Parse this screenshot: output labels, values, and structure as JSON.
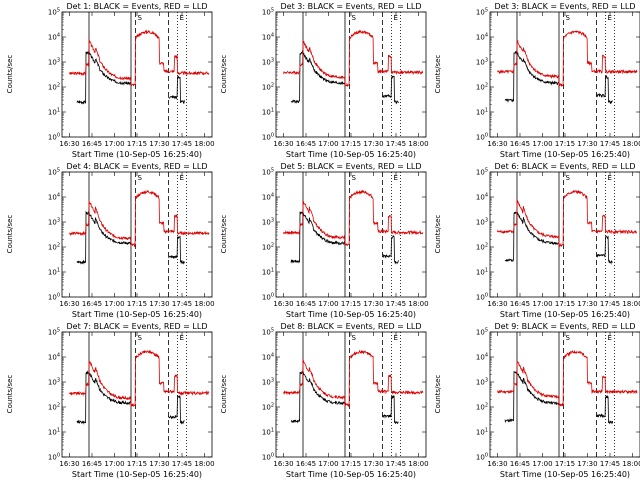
{
  "x_tick_labels": [
    "16:30",
    "16:45",
    "17:00",
    "17:15",
    "17:30",
    "17:45",
    "18:00"
  ],
  "y_tick_labels": [
    "10^0",
    "10^1",
    "10^2",
    "10^3",
    "10^4",
    "10^5"
  ],
  "chart_data": [
    {
      "type": "line",
      "title": "Det 1: BLACK = Events, RED = LLD",
      "xlabel": "Start Time (10-Sep-05 16:25:40)",
      "ylabel": "Counts/sec",
      "ylim": [
        1,
        100000
      ],
      "series": [
        {
          "name": "BLACK = Events",
          "color": "#000000"
        },
        {
          "name": "RED = LLD",
          "color": "#dd0000"
        }
      ],
      "legend": "none",
      "grid": false
    },
    {
      "type": "line",
      "title": "Det 3: BLACK = Events, RED = LLD",
      "xlabel": "Start Time (10-Sep-05 16:25:40)",
      "ylabel": "Counts/sec",
      "ylim": [
        1,
        100000
      ],
      "series": [
        {
          "name": "BLACK = Events",
          "color": "#000000"
        },
        {
          "name": "RED = LLD",
          "color": "#dd0000"
        }
      ],
      "legend": "none",
      "grid": false
    },
    {
      "type": "line",
      "title": "Det 3: BLACK = Events, RED = LLD",
      "xlabel": "Start Time (10-Sep-05 16:25:40)",
      "ylabel": "Counts/sec",
      "ylim": [
        1,
        100000
      ],
      "series": [
        {
          "name": "BLACK = Events",
          "color": "#000000"
        },
        {
          "name": "RED = LLD",
          "color": "#dd0000"
        }
      ],
      "legend": "none",
      "grid": false
    },
    {
      "type": "line",
      "title": "Det 4: BLACK = Events, RED = LLD",
      "xlabel": "Start Time (10-Sep-05 16:25:40)",
      "ylabel": "Counts/sec",
      "ylim": [
        1,
        100000
      ],
      "series": [
        {
          "name": "BLACK = Events",
          "color": "#000000"
        },
        {
          "name": "RED = LLD",
          "color": "#dd0000"
        }
      ],
      "legend": "none",
      "grid": false
    },
    {
      "type": "line",
      "title": "Det 5: BLACK = Events, RED = LLD",
      "xlabel": "Start Time (10-Sep-05 16:25:40)",
      "ylabel": "Counts/sec",
      "ylim": [
        1,
        100000
      ],
      "series": [
        {
          "name": "BLACK = Events",
          "color": "#000000"
        },
        {
          "name": "RED = LLD",
          "color": "#dd0000"
        }
      ],
      "legend": "none",
      "grid": false
    },
    {
      "type": "line",
      "title": "Det 6: BLACK = Events, RED = LLD",
      "xlabel": "Start Time (10-Sep-05 16:25:40)",
      "ylabel": "Counts/sec",
      "ylim": [
        1,
        100000
      ],
      "series": [
        {
          "name": "BLACK = Events",
          "color": "#000000"
        },
        {
          "name": "RED = LLD",
          "color": "#dd0000"
        }
      ],
      "legend": "none",
      "grid": false
    },
    {
      "type": "line",
      "title": "Det 7: BLACK = Events, RED = LLD",
      "xlabel": "Start Time (10-Sep-05 16:25:40)",
      "ylabel": "Counts/sec",
      "ylim": [
        1,
        100000
      ],
      "series": [
        {
          "name": "BLACK = Events",
          "color": "#000000"
        },
        {
          "name": "RED = LLD",
          "color": "#dd0000"
        }
      ],
      "legend": "none",
      "grid": false
    },
    {
      "type": "line",
      "title": "Det 8: BLACK = Events, RED = LLD",
      "xlabel": "Start Time (10-Sep-05 16:25:40)",
      "ylabel": "Counts/sec",
      "ylim": [
        1,
        100000
      ],
      "series": [
        {
          "name": "BLACK = Events",
          "color": "#000000"
        },
        {
          "name": "RED = LLD",
          "color": "#dd0000"
        }
      ],
      "legend": "none",
      "grid": false
    },
    {
      "type": "line",
      "title": "Det 9: BLACK = Events, RED = LLD",
      "xlabel": "Start Time (10-Sep-05 16:25:40)",
      "ylabel": "Counts/sec",
      "ylim": [
        1,
        100000
      ],
      "series": [
        {
          "name": "BLACK = Events",
          "color": "#000000"
        },
        {
          "name": "RED = LLD",
          "color": "#dd0000"
        }
      ],
      "legend": "none",
      "grid": false
    }
  ],
  "markers": {
    "solid": [
      "16:43",
      "17:11"
    ],
    "dashed": [
      "17:14",
      "17:36"
    ],
    "dotted": [
      "17:42",
      "17:48"
    ],
    "labels": [
      {
        "text": "S",
        "at": "17:14"
      },
      {
        "text": "E",
        "at": "17:42"
      }
    ]
  }
}
